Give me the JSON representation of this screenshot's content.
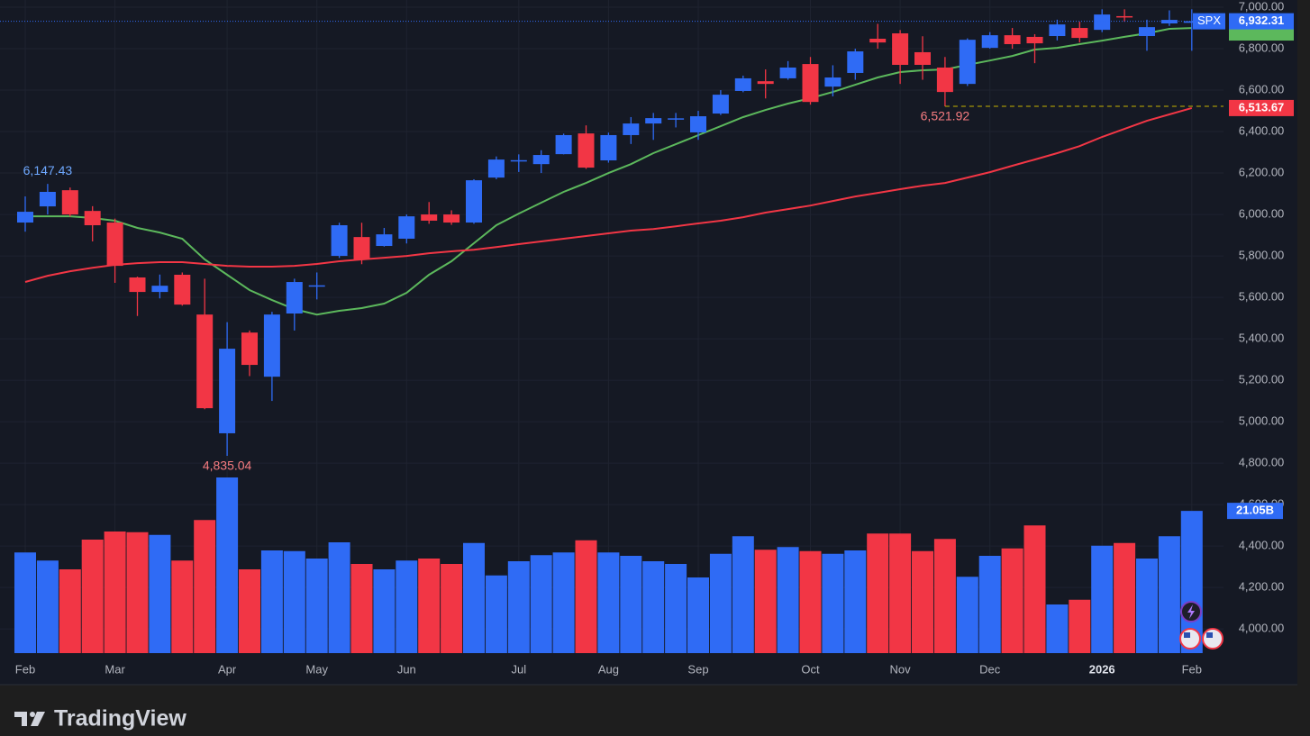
{
  "chart_data": {
    "type": "candlestick",
    "symbol": "SPX",
    "categories": [
      "Feb",
      null,
      null,
      null,
      "Mar",
      null,
      null,
      null,
      null,
      "Apr",
      null,
      null,
      null,
      "May",
      null,
      null,
      null,
      "Jun",
      null,
      null,
      null,
      null,
      "Jul",
      null,
      null,
      null,
      "Aug",
      null,
      null,
      null,
      "Sep",
      null,
      null,
      null,
      null,
      "Oct",
      null,
      null,
      null,
      "Nov",
      null,
      null,
      null,
      "Dec",
      null,
      null,
      null,
      null,
      "2026",
      null,
      null,
      null,
      "Feb"
    ],
    "open": [
      5961,
      6039,
      6117,
      6017,
      5961,
      5696,
      5626,
      5709,
      5517,
      4944,
      5430,
      5217,
      5522,
      5652,
      5800,
      5891,
      5848,
      5883,
      6000,
      6000,
      5961,
      6178,
      6258,
      6243,
      6291,
      6391,
      6261,
      6383,
      6439,
      6458,
      6396,
      6487,
      6596,
      6643,
      6657,
      6726,
      6617,
      6683,
      6848,
      6874,
      6783,
      6709,
      6630,
      6804,
      6865,
      6857,
      6861,
      6900,
      6891,
      6957,
      6861,
      6922,
      6925
    ],
    "high": [
      6087,
      6147.43,
      6130,
      6040,
      5980,
      5700,
      5710,
      5720,
      5690,
      5480,
      5440,
      5530,
      5690,
      5720,
      5960,
      5960,
      5935,
      6000,
      6060,
      6020,
      6170,
      6280,
      6290,
      6310,
      6390,
      6430,
      6395,
      6470,
      6490,
      6490,
      6500,
      6600,
      6670,
      6700,
      6740,
      6760,
      6720,
      6800,
      6920,
      6890,
      6860,
      6760,
      6850,
      6880,
      6900,
      6870,
      6940,
      6930,
      6990,
      6990,
      6940,
      6985,
      6990
    ],
    "low": [
      5917,
      6000,
      5990,
      5870,
      5670,
      5510,
      5595,
      5560,
      5060,
      4835.04,
      5220,
      5100,
      5440,
      5590,
      5790,
      5760,
      5845,
      5860,
      5955,
      5950,
      5955,
      6170,
      6205,
      6200,
      6290,
      6220,
      6250,
      6340,
      6360,
      6420,
      6360,
      6480,
      6590,
      6560,
      6650,
      6530,
      6570,
      6650,
      6800,
      6630,
      6650,
      6521.92,
      6620,
      6800,
      6800,
      6730,
      6840,
      6830,
      6880,
      6930,
      6790,
      6910,
      6790
    ],
    "close": [
      6013,
      6109,
      6000,
      5948,
      5752,
      5626,
      5656,
      5565,
      5065,
      5352,
      5274,
      5517,
      5674,
      5658,
      5948,
      5783,
      5904,
      5991,
      5970,
      5961,
      6165,
      6265,
      6262,
      6287,
      6383,
      6226,
      6383,
      6439,
      6465,
      6464,
      6474,
      6578,
      6657,
      6630,
      6709,
      6543,
      6661,
      6787,
      6830,
      6722,
      6722,
      6591,
      6843,
      6865,
      6822,
      6826,
      6917,
      6852,
      6965,
      6953,
      6904,
      6939,
      6932.31
    ],
    "up_color": "#2f6bf5",
    "down_color": "#f23645",
    "last_price_label": "6,932.31",
    "ylim": [
      3883,
      7035
    ],
    "yticks": [
      {
        "value": 4000,
        "label": "4,000.00"
      },
      {
        "value": 4200,
        "label": "4,200.00"
      },
      {
        "value": 4400,
        "label": "4,400.00"
      },
      {
        "value": 4600,
        "label": "4,600.00"
      },
      {
        "value": 4800,
        "label": "4,800.00"
      },
      {
        "value": 5000,
        "label": "5,000.00"
      },
      {
        "value": 5200,
        "label": "5,200.00"
      },
      {
        "value": 5400,
        "label": "5,400.00"
      },
      {
        "value": 5600,
        "label": "5,600.00"
      },
      {
        "value": 5800,
        "label": "5,800.00"
      },
      {
        "value": 6000,
        "label": "6,000.00"
      },
      {
        "value": 6200,
        "label": "6,200.00"
      },
      {
        "value": 6400,
        "label": "6,400.00"
      },
      {
        "value": 6600,
        "label": "6,600.00"
      },
      {
        "value": 6800,
        "label": "6,800.00"
      },
      {
        "value": 7000,
        "label": "7,000.00"
      }
    ],
    "grid": true,
    "moving_averages": [
      {
        "color": "#5cb85c",
        "values": [
          5991,
          5991,
          5991,
          5983,
          5970,
          5935,
          5913,
          5883,
          5783,
          5709,
          5635,
          5587,
          5543,
          5517,
          5535,
          5548,
          5570,
          5622,
          5709,
          5774,
          5861,
          5948,
          6004,
          6057,
          6109,
          6152,
          6200,
          6243,
          6296,
          6339,
          6383,
          6426,
          6470,
          6504,
          6535,
          6561,
          6591,
          6626,
          6661,
          6687,
          6696,
          6700,
          6722,
          6743,
          6765,
          6796,
          6804,
          6822,
          6839,
          6857,
          6874,
          6896,
          6900
        ]
      },
      {
        "color": "#f23645",
        "last_label": "6,513.67",
        "values": [
          5674,
          5704,
          5726,
          5743,
          5757,
          5765,
          5770,
          5770,
          5761,
          5752,
          5748,
          5748,
          5752,
          5761,
          5774,
          5783,
          5791,
          5800,
          5813,
          5822,
          5830,
          5843,
          5857,
          5870,
          5883,
          5896,
          5909,
          5922,
          5930,
          5943,
          5957,
          5970,
          5987,
          6009,
          6026,
          6043,
          6065,
          6087,
          6104,
          6122,
          6139,
          6152,
          6178,
          6204,
          6235,
          6265,
          6296,
          6330,
          6374,
          6413,
          6452,
          6483,
          6513.67
        ]
      }
    ],
    "volume": {
      "values": [
        14.9,
        13.7,
        12.4,
        16.8,
        18.0,
        17.9,
        17.5,
        13.7,
        19.7,
        26.0,
        12.4,
        15.2,
        15.1,
        14.0,
        16.4,
        13.2,
        12.4,
        13.7,
        14.0,
        13.2,
        16.3,
        11.5,
        13.6,
        14.5,
        14.9,
        16.7,
        14.9,
        14.4,
        13.6,
        13.2,
        11.2,
        14.7,
        17.3,
        15.3,
        15.7,
        15.1,
        14.7,
        15.2,
        17.7,
        17.7,
        15.1,
        16.9,
        11.3,
        14.4,
        15.5,
        18.9,
        7.2,
        7.9,
        15.9,
        16.3,
        14.0,
        17.3,
        21.05
      ],
      "ylim": [
        0,
        28
      ],
      "last_label": "21.05B"
    },
    "annotations": [
      {
        "value": 6147.43,
        "label": "6,147.43",
        "color": "#6ea8ff"
      },
      {
        "value": 4835.04,
        "label": "4,835.04",
        "color": "#f77c80"
      },
      {
        "value": 6521.92,
        "label": "6,521.92",
        "color": "#f77c80",
        "dashed_line": "#c8b400"
      }
    ]
  },
  "brand": "TradingView"
}
